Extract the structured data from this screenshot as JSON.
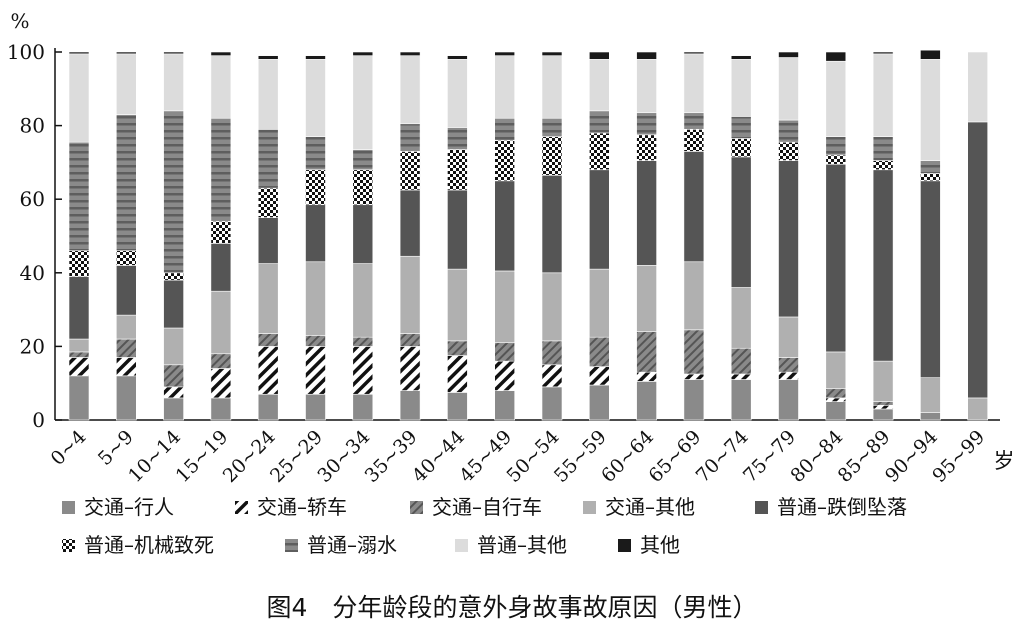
{
  "chart_data": {
    "type": "bar",
    "stacked": true,
    "y_unit_label": "%",
    "x_unit_label": "岁",
    "ylim": [
      0,
      100
    ],
    "yticks": [
      0,
      20,
      40,
      60,
      80,
      100
    ],
    "categories": [
      "0~4",
      "5~9",
      "10~14",
      "15~19",
      "20~24",
      "25~29",
      "30~34",
      "35~39",
      "40~44",
      "45~49",
      "50~54",
      "55~59",
      "60~64",
      "65~69",
      "70~74",
      "75~79",
      "80~84",
      "85~89",
      "90~94",
      "95~99"
    ],
    "series": [
      {
        "name": "交通–行人",
        "color": "#8a8a8a",
        "pattern": "solid",
        "values": [
          12,
          12,
          6,
          6,
          7,
          7,
          7,
          8,
          7.5,
          8,
          9,
          9.5,
          10.5,
          11,
          11,
          11,
          5,
          3,
          2,
          0
        ]
      },
      {
        "name": "交通–轿车",
        "color": "#ffffff",
        "pattern": "stripe-black",
        "values": [
          5,
          5,
          3,
          8,
          13,
          13,
          13,
          12,
          10,
          8,
          6,
          5,
          2.5,
          1.5,
          1.5,
          2,
          1,
          1,
          0,
          0
        ]
      },
      {
        "name": "交通–自行车",
        "color": "#7a7a7a",
        "pattern": "stripe-dark",
        "values": [
          1.5,
          5,
          6,
          4,
          3.5,
          3,
          2.5,
          3.5,
          4,
          5,
          6.5,
          8,
          11,
          12,
          7,
          4,
          2.5,
          1,
          0,
          0
        ]
      },
      {
        "name": "交通–其他",
        "color": "#b0b0b0",
        "pattern": "solid",
        "values": [
          3.5,
          6.5,
          10,
          17,
          19,
          20,
          20,
          21,
          19.5,
          19.5,
          18.5,
          18.5,
          18,
          18.5,
          16.5,
          11,
          10,
          11,
          9.5,
          6
        ]
      },
      {
        "name": "普通–跌倒坠落",
        "color": "#555555",
        "pattern": "solid",
        "values": [
          17,
          13.5,
          13,
          13,
          12.5,
          15.5,
          16,
          18,
          21.5,
          24.5,
          26.5,
          27,
          28.5,
          30,
          35.5,
          42.5,
          51,
          52,
          53.5,
          75
        ]
      },
      {
        "name": "普通–机械致死",
        "color": "#ffffff",
        "pattern": "checker",
        "values": [
          7,
          4,
          2,
          6,
          8,
          9.5,
          9.5,
          10.5,
          11,
          11,
          10.5,
          10,
          7,
          6,
          5,
          5,
          2.5,
          2.5,
          2,
          0
        ]
      },
      {
        "name": "普通–溺水",
        "color": "#7a7a7a",
        "pattern": "hstripe",
        "values": [
          29.5,
          37,
          44,
          28,
          16,
          9,
          5.5,
          7.5,
          6,
          6,
          5,
          6,
          6,
          4.5,
          6,
          6,
          5,
          6.5,
          3.5,
          0
        ]
      },
      {
        "name": "普通–其他",
        "color": "#dcdcdc",
        "pattern": "solid",
        "values": [
          24,
          16.5,
          15.5,
          17,
          19,
          21,
          25.5,
          18.5,
          18.5,
          17,
          17,
          14,
          14.5,
          16,
          15.5,
          17,
          20.5,
          22.5,
          27.5,
          19
        ]
      },
      {
        "name": "其他",
        "color": "#1a1a1a",
        "pattern": "solid",
        "values": [
          0.5,
          0.5,
          0.5,
          1,
          1,
          1,
          1,
          1,
          1,
          1,
          1,
          2,
          2,
          0.5,
          1,
          1.5,
          2.5,
          0.5,
          2.5,
          0
        ]
      }
    ]
  },
  "caption": "图4　分年龄段的意外身故事故原因（男性）"
}
